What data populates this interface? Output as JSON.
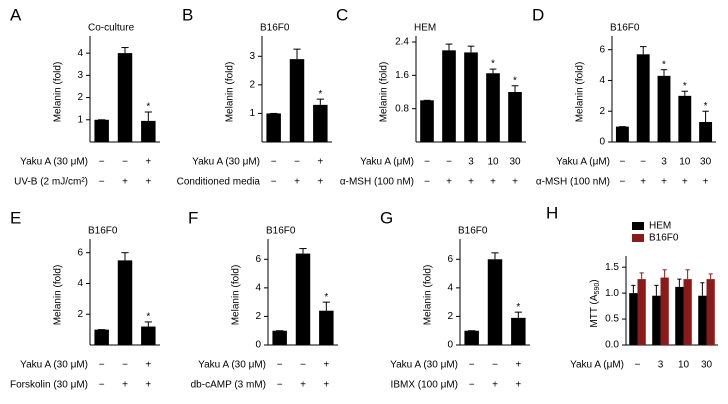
{
  "chart_data": [
    {
      "type": "bar",
      "label": "A",
      "subtitle": "Co-culture",
      "ylabel": "Melanin (fold)",
      "color": "#000000",
      "values": [
        1,
        4.0,
        0.95
      ],
      "errors": [
        0,
        0.25,
        0.4
      ],
      "significance": [
        null,
        null,
        "*"
      ],
      "ylim": [
        0,
        4.5
      ],
      "yticks": [
        1,
        2,
        3,
        4
      ],
      "treatments": [
        {
          "name": "Yaku A (30 μM)",
          "marks": [
            "−",
            "−",
            "+"
          ]
        },
        {
          "name": "UV-B (2 mJ/cm²)",
          "marks": [
            "−",
            "+",
            "+"
          ]
        }
      ]
    },
    {
      "type": "bar",
      "label": "B",
      "subtitle": "B16F0",
      "ylabel": "Melanin (fold)",
      "color": "#000000",
      "values": [
        1,
        2.9,
        1.3
      ],
      "errors": [
        0,
        0.35,
        0.2
      ],
      "significance": [
        null,
        null,
        "*"
      ],
      "ylim": [
        0,
        3.5
      ],
      "yticks": [
        1,
        2,
        3
      ],
      "treatments": [
        {
          "name": "Yaku A (30 μM)",
          "marks": [
            "−",
            "−",
            "+"
          ]
        },
        {
          "name": "Conditioned media",
          "marks": [
            "−",
            "+",
            "+"
          ]
        }
      ]
    },
    {
      "type": "bar",
      "label": "C",
      "subtitle": "HEM",
      "ylabel": "Melanin (fold)",
      "color": "#000000",
      "values": [
        1.0,
        2.2,
        2.15,
        1.65,
        1.2
      ],
      "errors": [
        0,
        0.15,
        0.15,
        0.1,
        0.15
      ],
      "significance": [
        null,
        null,
        null,
        "*",
        "*"
      ],
      "ylim": [
        0,
        2.4
      ],
      "yticks": [
        0.8,
        1.6,
        2.4
      ],
      "treatments": [
        {
          "name": "Yaku A (μM)",
          "marks": [
            "−",
            "−",
            "3",
            "10",
            "30"
          ]
        },
        {
          "name": "α-MSH (100 nM)",
          "marks": [
            "−",
            "+",
            "+",
            "+",
            "+"
          ]
        }
      ]
    },
    {
      "type": "bar",
      "label": "D",
      "subtitle": "B16F0",
      "ylabel": "Melanin (fold)",
      "color": "#000000",
      "values": [
        1,
        5.7,
        4.3,
        3.0,
        1.3
      ],
      "errors": [
        0,
        0.5,
        0.4,
        0.3,
        0.7
      ],
      "significance": [
        null,
        null,
        "*",
        "*",
        "*"
      ],
      "ylim": [
        0,
        6.5
      ],
      "yticks": [
        0,
        2,
        4,
        6
      ],
      "treatments": [
        {
          "name": "Yaku A (μM)",
          "marks": [
            "−",
            "−",
            "3",
            "10",
            "30"
          ]
        },
        {
          "name": "α-MSH (100 nM)",
          "marks": [
            "−",
            "+",
            "+",
            "+",
            "+"
          ]
        }
      ]
    },
    {
      "type": "bar",
      "label": "E",
      "subtitle": "B16F0",
      "ylabel": "Melanin (fold)",
      "color": "#000000",
      "values": [
        1,
        5.5,
        1.2
      ],
      "errors": [
        0,
        0.5,
        0.3
      ],
      "significance": [
        null,
        null,
        "*"
      ],
      "ylim": [
        0,
        6.5
      ],
      "yticks": [
        2,
        4,
        6
      ],
      "treatments": [
        {
          "name": "Yaku A (30 μM)",
          "marks": [
            "−",
            "−",
            "+"
          ]
        },
        {
          "name": "Forskolin (30 μM)",
          "marks": [
            "−",
            "+",
            "+"
          ]
        }
      ]
    },
    {
      "type": "bar",
      "label": "F",
      "subtitle": "B16F0",
      "ylabel": "Melanin (fold)",
      "color": "#000000",
      "values": [
        1,
        6.4,
        2.4
      ],
      "errors": [
        0,
        0.35,
        0.6
      ],
      "significance": [
        null,
        null,
        "*"
      ],
      "ylim": [
        0,
        7
      ],
      "yticks": [
        0,
        2,
        4,
        6
      ],
      "treatments": [
        {
          "name": "Yaku A (30 μM)",
          "marks": [
            "−",
            "−",
            "+"
          ]
        },
        {
          "name": "db-cAMP (3 mM)",
          "marks": [
            "−",
            "+",
            "+"
          ]
        }
      ]
    },
    {
      "type": "bar",
      "label": "G",
      "subtitle": "B16F0",
      "ylabel": "Melanin (fold)",
      "color": "#000000",
      "values": [
        1,
        6.0,
        1.9
      ],
      "errors": [
        0,
        0.45,
        0.4
      ],
      "significance": [
        null,
        null,
        "*"
      ],
      "ylim": [
        0,
        7
      ],
      "yticks": [
        0,
        2,
        4,
        6
      ],
      "treatments": [
        {
          "name": "Yaku A (30 μM)",
          "marks": [
            "−",
            "−",
            "+"
          ]
        },
        {
          "name": "IBMX (100 μM)",
          "marks": [
            "−",
            "+",
            "+"
          ]
        }
      ]
    },
    {
      "type": "bar",
      "label": "H",
      "ylabel": [
        "MTT (A",
        "590",
        ")"
      ],
      "legend": "upper left",
      "series": [
        {
          "name": "HEM",
          "color": "#000000",
          "values": [
            1.0,
            0.95,
            1.12,
            0.95
          ],
          "errors": [
            0.15,
            0.2,
            0.15,
            0.25
          ]
        },
        {
          "name": "B16F0",
          "color": "#8b1a1a",
          "values": [
            1.27,
            1.3,
            1.27,
            1.27
          ],
          "errors": [
            0.12,
            0.15,
            0.18,
            0.1
          ]
        }
      ],
      "ylim": [
        0,
        1.6
      ],
      "yticks": [
        {
          "value": 0,
          "label": "0.0"
        },
        0.5,
        {
          "value": 1,
          "label": "1.0"
        },
        1.5
      ],
      "treatments": [
        {
          "name": "Yaku A (μM)",
          "marks": [
            "−",
            "3",
            "10",
            "30"
          ]
        }
      ]
    }
  ]
}
